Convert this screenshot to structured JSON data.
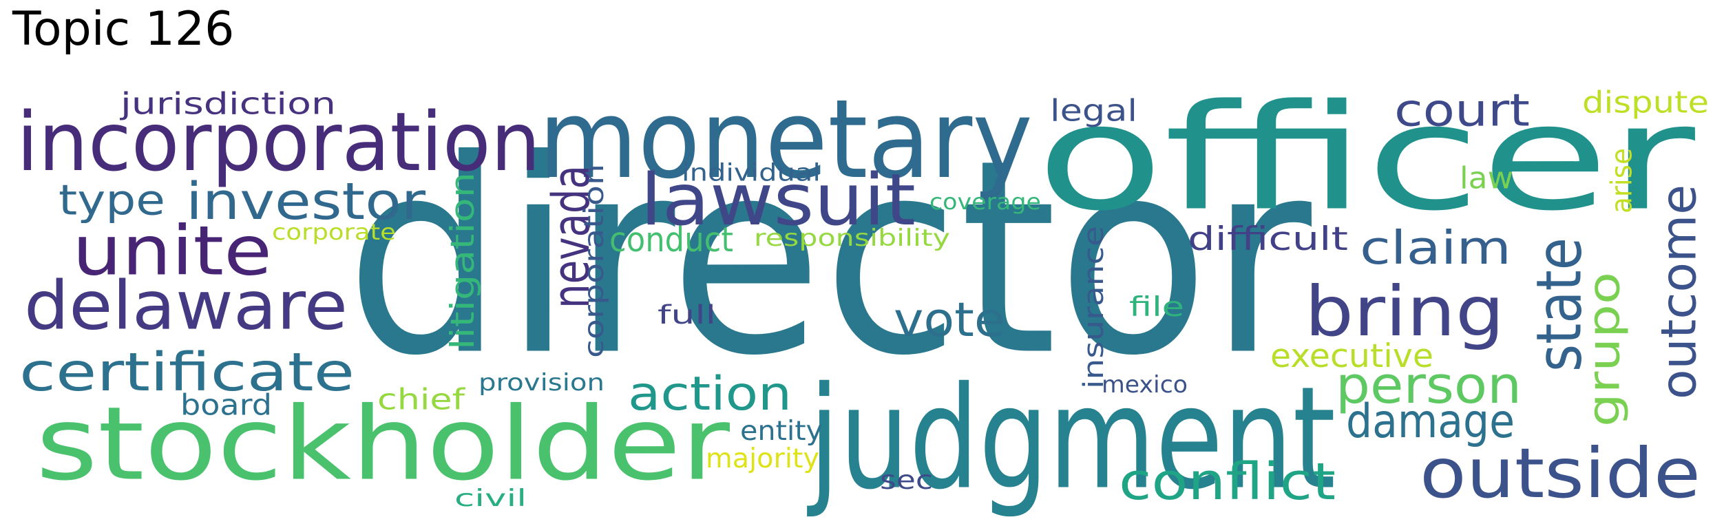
{
  "title": "Topic 126",
  "words": [
    {
      "text": "director",
      "color": "#2a788e"
    },
    {
      "text": "officer",
      "color": "#21918c"
    },
    {
      "text": "stockholder",
      "color": "#4ac16d"
    },
    {
      "text": "judgment",
      "color": "#26828e"
    },
    {
      "text": "monetary",
      "color": "#2f6b8e"
    },
    {
      "text": "incorporation",
      "color": "#472c7a"
    },
    {
      "text": "lawsuit",
      "color": "#3f4788"
    },
    {
      "text": "outside",
      "color": "#3b528b"
    },
    {
      "text": "bring",
      "color": "#414487"
    },
    {
      "text": "delaware",
      "color": "#443983"
    },
    {
      "text": "unite",
      "color": "#482475"
    },
    {
      "text": "certificate",
      "color": "#2c728e"
    },
    {
      "text": "investor",
      "color": "#31688e"
    },
    {
      "text": "state",
      "color": "#33638d"
    },
    {
      "text": "conflict",
      "color": "#20a486"
    },
    {
      "text": "nevada",
      "color": "#46337f"
    },
    {
      "text": "outcome",
      "color": "#3b528b"
    },
    {
      "text": "person",
      "color": "#5ec962"
    },
    {
      "text": "action",
      "color": "#1f988b"
    },
    {
      "text": "damage",
      "color": "#2c728e"
    },
    {
      "text": "vote",
      "color": "#2d708e"
    },
    {
      "text": "claim",
      "color": "#355f8d"
    },
    {
      "text": "court",
      "color": "#3e4989"
    },
    {
      "text": "grupo",
      "color": "#7ad151"
    },
    {
      "text": "type",
      "color": "#31688e"
    },
    {
      "text": "litigation",
      "color": "#35b779"
    },
    {
      "text": "corporation",
      "color": "#38598c"
    },
    {
      "text": "insurance",
      "color": "#38598c"
    },
    {
      "text": "jurisdiction",
      "color": "#46327e"
    },
    {
      "text": "legal",
      "color": "#3b528b"
    },
    {
      "text": "dispute",
      "color": "#bddf26"
    },
    {
      "text": "difficult",
      "color": "#424086"
    },
    {
      "text": "conduct",
      "color": "#44bf70"
    },
    {
      "text": "executive",
      "color": "#b8de29"
    },
    {
      "text": "responsibility",
      "color": "#95d840"
    },
    {
      "text": "corporate",
      "color": "#b8de29"
    },
    {
      "text": "law",
      "color": "#7ad151"
    },
    {
      "text": "board",
      "color": "#2c728e"
    },
    {
      "text": "chief",
      "color": "#95d840"
    },
    {
      "text": "individual",
      "color": "#33638d"
    },
    {
      "text": "coverage",
      "color": "#35b779"
    },
    {
      "text": "provision",
      "color": "#2a788e"
    },
    {
      "text": "mexico",
      "color": "#3b528b"
    },
    {
      "text": "entity",
      "color": "#2c728e"
    },
    {
      "text": "majority",
      "color": "#dde318"
    },
    {
      "text": "sec",
      "color": "#3e4a89"
    },
    {
      "text": "civil",
      "color": "#29af7f"
    },
    {
      "text": "full",
      "color": "#414487"
    },
    {
      "text": "file",
      "color": "#2eb37c"
    },
    {
      "text": "arise",
      "color": "#c2df23"
    }
  ]
}
